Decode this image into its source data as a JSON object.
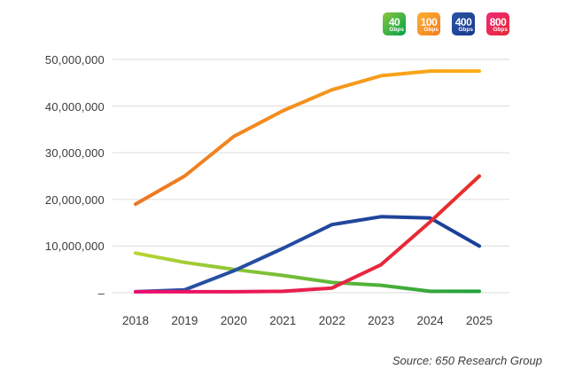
{
  "legend": {
    "items": [
      {
        "label": "40",
        "sub": "Gbps",
        "color_start": "#8dc63f",
        "color_end": "#00a14b"
      },
      {
        "label": "100",
        "sub": "Gbps",
        "color_start": "#fbb034",
        "color_end": "#f47b20"
      },
      {
        "label": "400",
        "sub": "Gbps",
        "color_start": "#2b55a5",
        "color_end": "#17398e"
      },
      {
        "label": "800",
        "sub": "Gbps",
        "color_start": "#ee2a7b",
        "color_end": "#e52a32"
      }
    ]
  },
  "source_note": "Source: 650 Research Group",
  "chart_data": {
    "type": "line",
    "title": "",
    "xlabel": "",
    "ylabel": "",
    "grid": true,
    "legend_position": "top-right",
    "categories": [
      "2018",
      "2019",
      "2020",
      "2021",
      "2022",
      "2023",
      "2024",
      "2025"
    ],
    "series": [
      {
        "name": "40 Gbps",
        "values": [
          8500000,
          6500000,
          5000000,
          3700000,
          2200000,
          1600000,
          300000,
          300000
        ],
        "color_start": "#b9d433",
        "color_end": "#1fa13c"
      },
      {
        "name": "100 Gbps",
        "values": [
          19000000,
          25000000,
          33500000,
          39000000,
          43500000,
          46500000,
          47500000,
          47500000
        ],
        "color_start": "#ed7623",
        "color_end": "#fbae17"
      },
      {
        "name": "400 Gbps",
        "values": [
          200000,
          600000,
          4700000,
          9500000,
          14600000,
          16300000,
          16000000,
          10000000
        ],
        "color_start": "#2a55a6",
        "color_end": "#1b3e97"
      },
      {
        "name": "800 Gbps",
        "values": [
          200000,
          200000,
          200000,
          300000,
          1000000,
          6000000,
          15200000,
          25000000
        ],
        "color_start": "#ec0d6e",
        "color_end": "#e73128"
      }
    ],
    "ylim": [
      0,
      50000000
    ],
    "y_ticks": [
      {
        "value": 50000000,
        "label": "50,000,000"
      },
      {
        "value": 40000000,
        "label": "40,000,000"
      },
      {
        "value": 30000000,
        "label": "30,000,000"
      },
      {
        "value": 20000000,
        "label": "20,000,000"
      },
      {
        "value": 10000000,
        "label": "10,000,000"
      },
      {
        "value": 0,
        "label": "–"
      }
    ]
  }
}
